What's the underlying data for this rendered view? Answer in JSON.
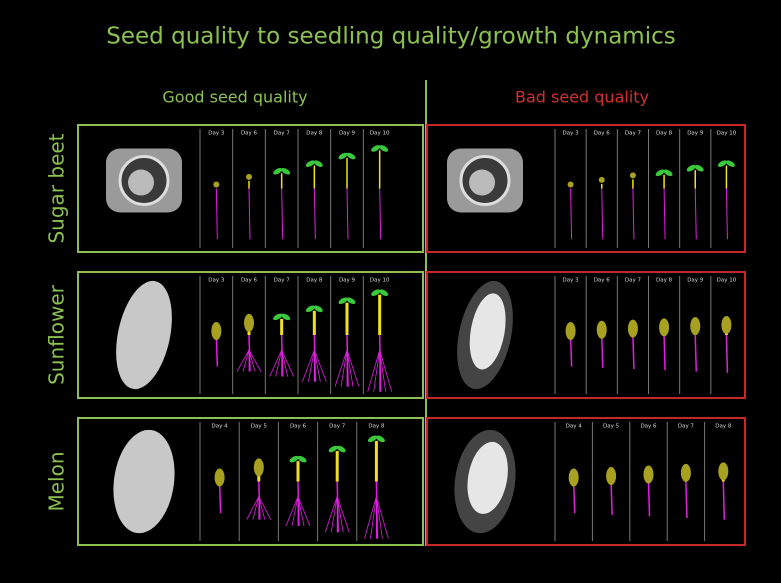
{
  "title": "Seed quality to seedling quality/growth dynamics",
  "columns": {
    "good": "Good seed quality",
    "bad": "Bad seed quality"
  },
  "rows": [
    {
      "label": "Sugar beet",
      "good": {
        "days": [
          "Day 3",
          "Day 6",
          "Day 7",
          "Day 8",
          "Day 9",
          "Day 10"
        ]
      },
      "bad": {
        "days": [
          "Day 3",
          "Day 6",
          "Day 7",
          "Day 8",
          "Day 9",
          "Day 10"
        ]
      }
    },
    {
      "label": "Sunflower",
      "good": {
        "days": [
          "Day 3",
          "Day 6",
          "Day 7",
          "Day 8",
          "Day 9",
          "Day 10"
        ]
      },
      "bad": {
        "days": [
          "Day 3",
          "Day 6",
          "Day 7",
          "Day 8",
          "Day 9",
          "Day 10"
        ]
      }
    },
    {
      "label": "Melon",
      "good": {
        "days": [
          "Day 4",
          "Day 5",
          "Day 6",
          "Day 7",
          "Day 8"
        ]
      },
      "bad": {
        "days": [
          "Day 4",
          "Day 5",
          "Day 6",
          "Day 7",
          "Day 8"
        ]
      }
    }
  ]
}
